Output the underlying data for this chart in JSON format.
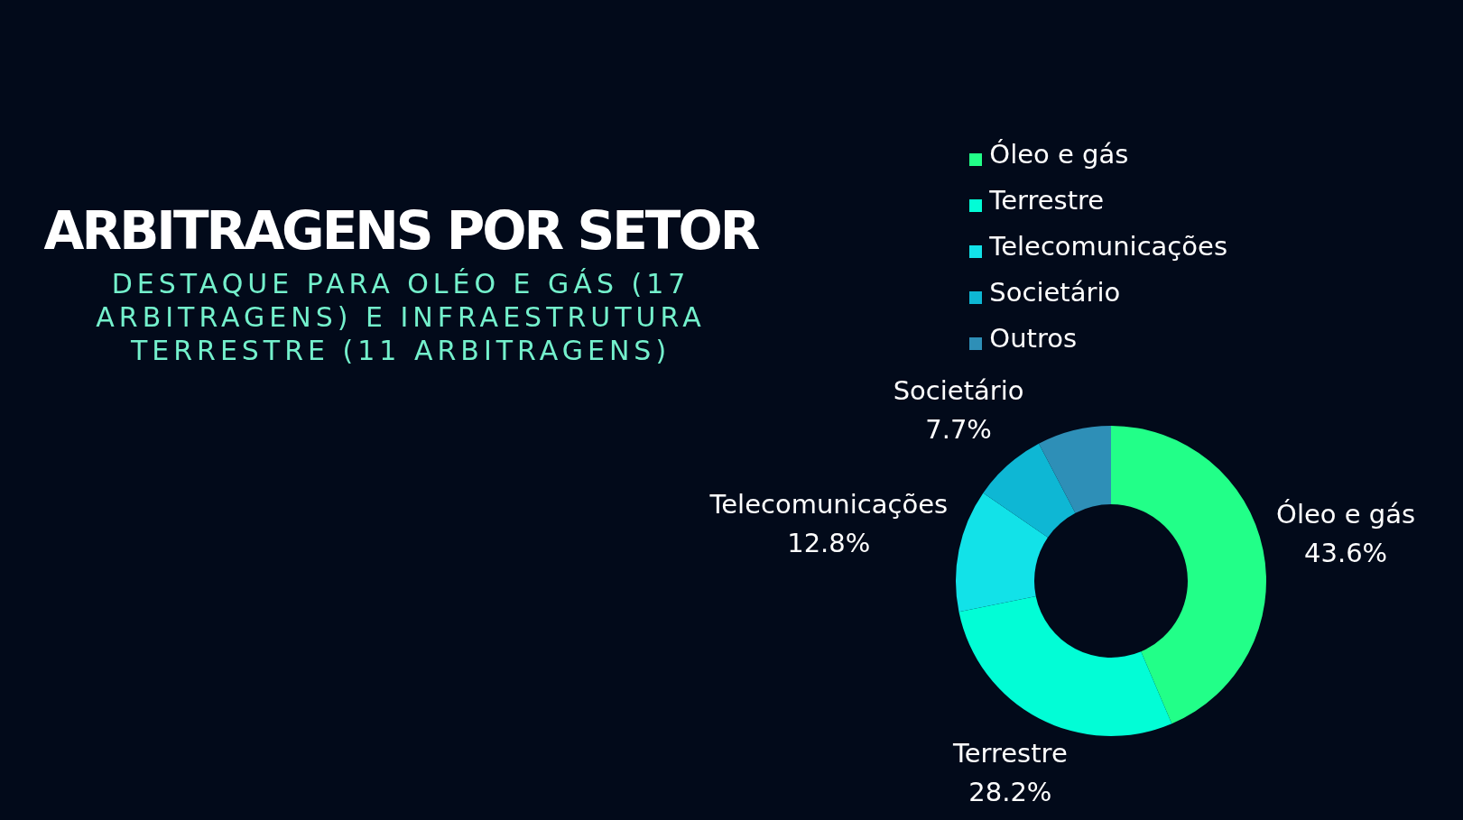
{
  "chart_data": {
    "type": "donut",
    "title": "ARBITRAGENS POR SETOR",
    "subtitle": "DESTAQUE PARA OLÉO E GÁS (17 ARBITRAGENS) E INFRAESTRUTURA TERRESTRE (11 ARBITRAGENS)",
    "categories": [
      "Óleo e gás",
      "Terrestre",
      "Telecomunicações",
      "Societário",
      "Outros"
    ],
    "values": [
      43.6,
      28.2,
      12.8,
      7.7,
      7.7
    ],
    "colors": [
      "#22ff88",
      "#02fdd6",
      "#12e2e8",
      "#0eb7d4",
      "#2e8fb7"
    ],
    "value_labels": [
      "43.6%",
      "28.2%",
      "12.8%",
      "7.7%",
      null
    ],
    "legend": "top right"
  }
}
